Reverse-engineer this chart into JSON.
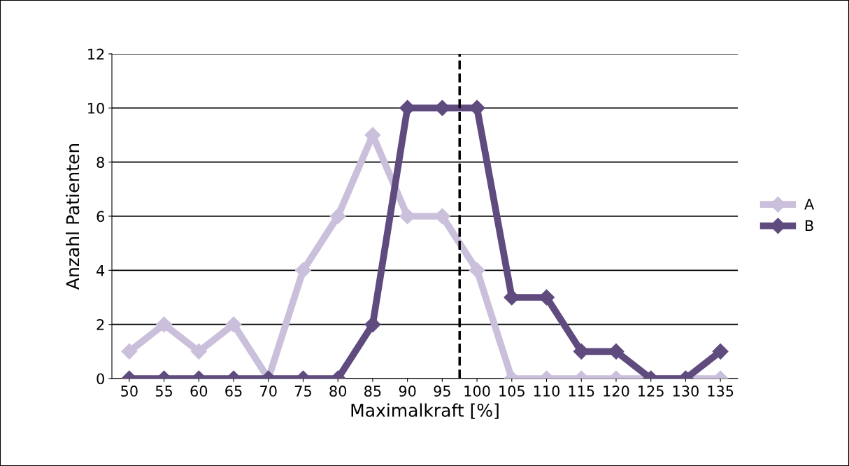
{
  "chart_data": {
    "type": "line",
    "xlabel": "Maximalkraft [%]",
    "ylabel": "Anzahl Patienten",
    "x": [
      50,
      55,
      60,
      65,
      70,
      75,
      80,
      85,
      90,
      95,
      100,
      105,
      110,
      115,
      120,
      125,
      130,
      135
    ],
    "xlim": [
      47.5,
      137.5
    ],
    "xticks": [
      50,
      55,
      60,
      65,
      70,
      75,
      80,
      85,
      90,
      95,
      100,
      105,
      110,
      115,
      120,
      125,
      130,
      135
    ],
    "ylim": [
      0,
      12
    ],
    "yticks": [
      0,
      2,
      4,
      6,
      8,
      10,
      12
    ],
    "series": [
      {
        "name": "A",
        "color": "#cbc0dc",
        "values": [
          1,
          2,
          1,
          2,
          0,
          4,
          6,
          9,
          6,
          6,
          4,
          0,
          0,
          0,
          0,
          0,
          0,
          0
        ]
      },
      {
        "name": "B",
        "color": "#5f4b7e",
        "values": [
          0,
          0,
          0,
          0,
          0,
          0,
          0,
          2,
          10,
          10,
          10,
          3,
          3,
          1,
          1,
          0,
          0,
          1
        ]
      }
    ],
    "ref_lines": [
      {
        "axis": "x",
        "value": 97.5,
        "color": "#000000",
        "line_style": "dashed"
      }
    ],
    "grid": "y",
    "legend": "right",
    "marker": "diamond",
    "line_style": "solid"
  }
}
